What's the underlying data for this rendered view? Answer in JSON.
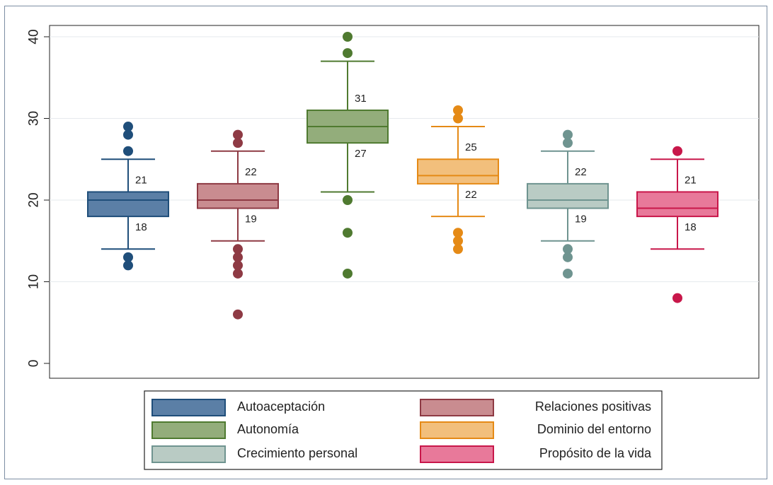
{
  "chart_data": {
    "type": "boxplot",
    "title": "",
    "xlabel": "",
    "ylabel": "",
    "ylim": [
      0,
      40
    ],
    "yticks": [
      "0",
      "10",
      "20",
      "30",
      "40"
    ],
    "grid": true,
    "legend_position": "bottom",
    "series": [
      {
        "name": "Autoaceptación",
        "color": "#5b7fa6",
        "stroke": "#1f4e7a",
        "q1": 18,
        "median": 20,
        "q3": 21,
        "whisker_low": 14,
        "whisker_high": 25,
        "outliers": [
          12,
          13,
          26,
          28,
          29
        ],
        "q1_label": "18",
        "q3_label": "21"
      },
      {
        "name": "Relaciones positivas",
        "color": "#c98c90",
        "stroke": "#8e3a44",
        "q1": 19,
        "median": 20,
        "q3": 22,
        "whisker_low": 15,
        "whisker_high": 26,
        "outliers": [
          6,
          11,
          12,
          13,
          14,
          27,
          28
        ],
        "q1_label": "19",
        "q3_label": "22"
      },
      {
        "name": "Autonomía",
        "color": "#93ad7b",
        "stroke": "#4f7a30",
        "q1": 27,
        "median": 29,
        "q3": 31,
        "whisker_low": 21,
        "whisker_high": 37,
        "outliers": [
          11,
          16,
          20,
          38,
          40
        ],
        "q1_label": "27",
        "q3_label": "31"
      },
      {
        "name": "Dominio del entorno",
        "color": "#f2bf7c",
        "stroke": "#e58a16",
        "q1": 22,
        "median": 23,
        "q3": 25,
        "whisker_low": 18,
        "whisker_high": 29,
        "outliers": [
          14,
          15,
          16,
          30,
          31
        ],
        "q1_label": "22",
        "q3_label": "25"
      },
      {
        "name": "Crecimiento personal",
        "color": "#b9cbc4",
        "stroke": "#6f9490",
        "q1": 19,
        "median": 20,
        "q3": 22,
        "whisker_low": 15,
        "whisker_high": 26,
        "outliers": [
          11,
          13,
          14,
          27,
          28
        ],
        "q1_label": "19",
        "q3_label": "22"
      },
      {
        "name": "Propósito de la vida",
        "color": "#e8799a",
        "stroke": "#c8174a",
        "q1": 18,
        "median": 19,
        "q3": 21,
        "whisker_low": 14,
        "whisker_high": 25,
        "outliers": [
          8,
          26
        ],
        "q1_label": "18",
        "q3_label": "21"
      }
    ]
  }
}
